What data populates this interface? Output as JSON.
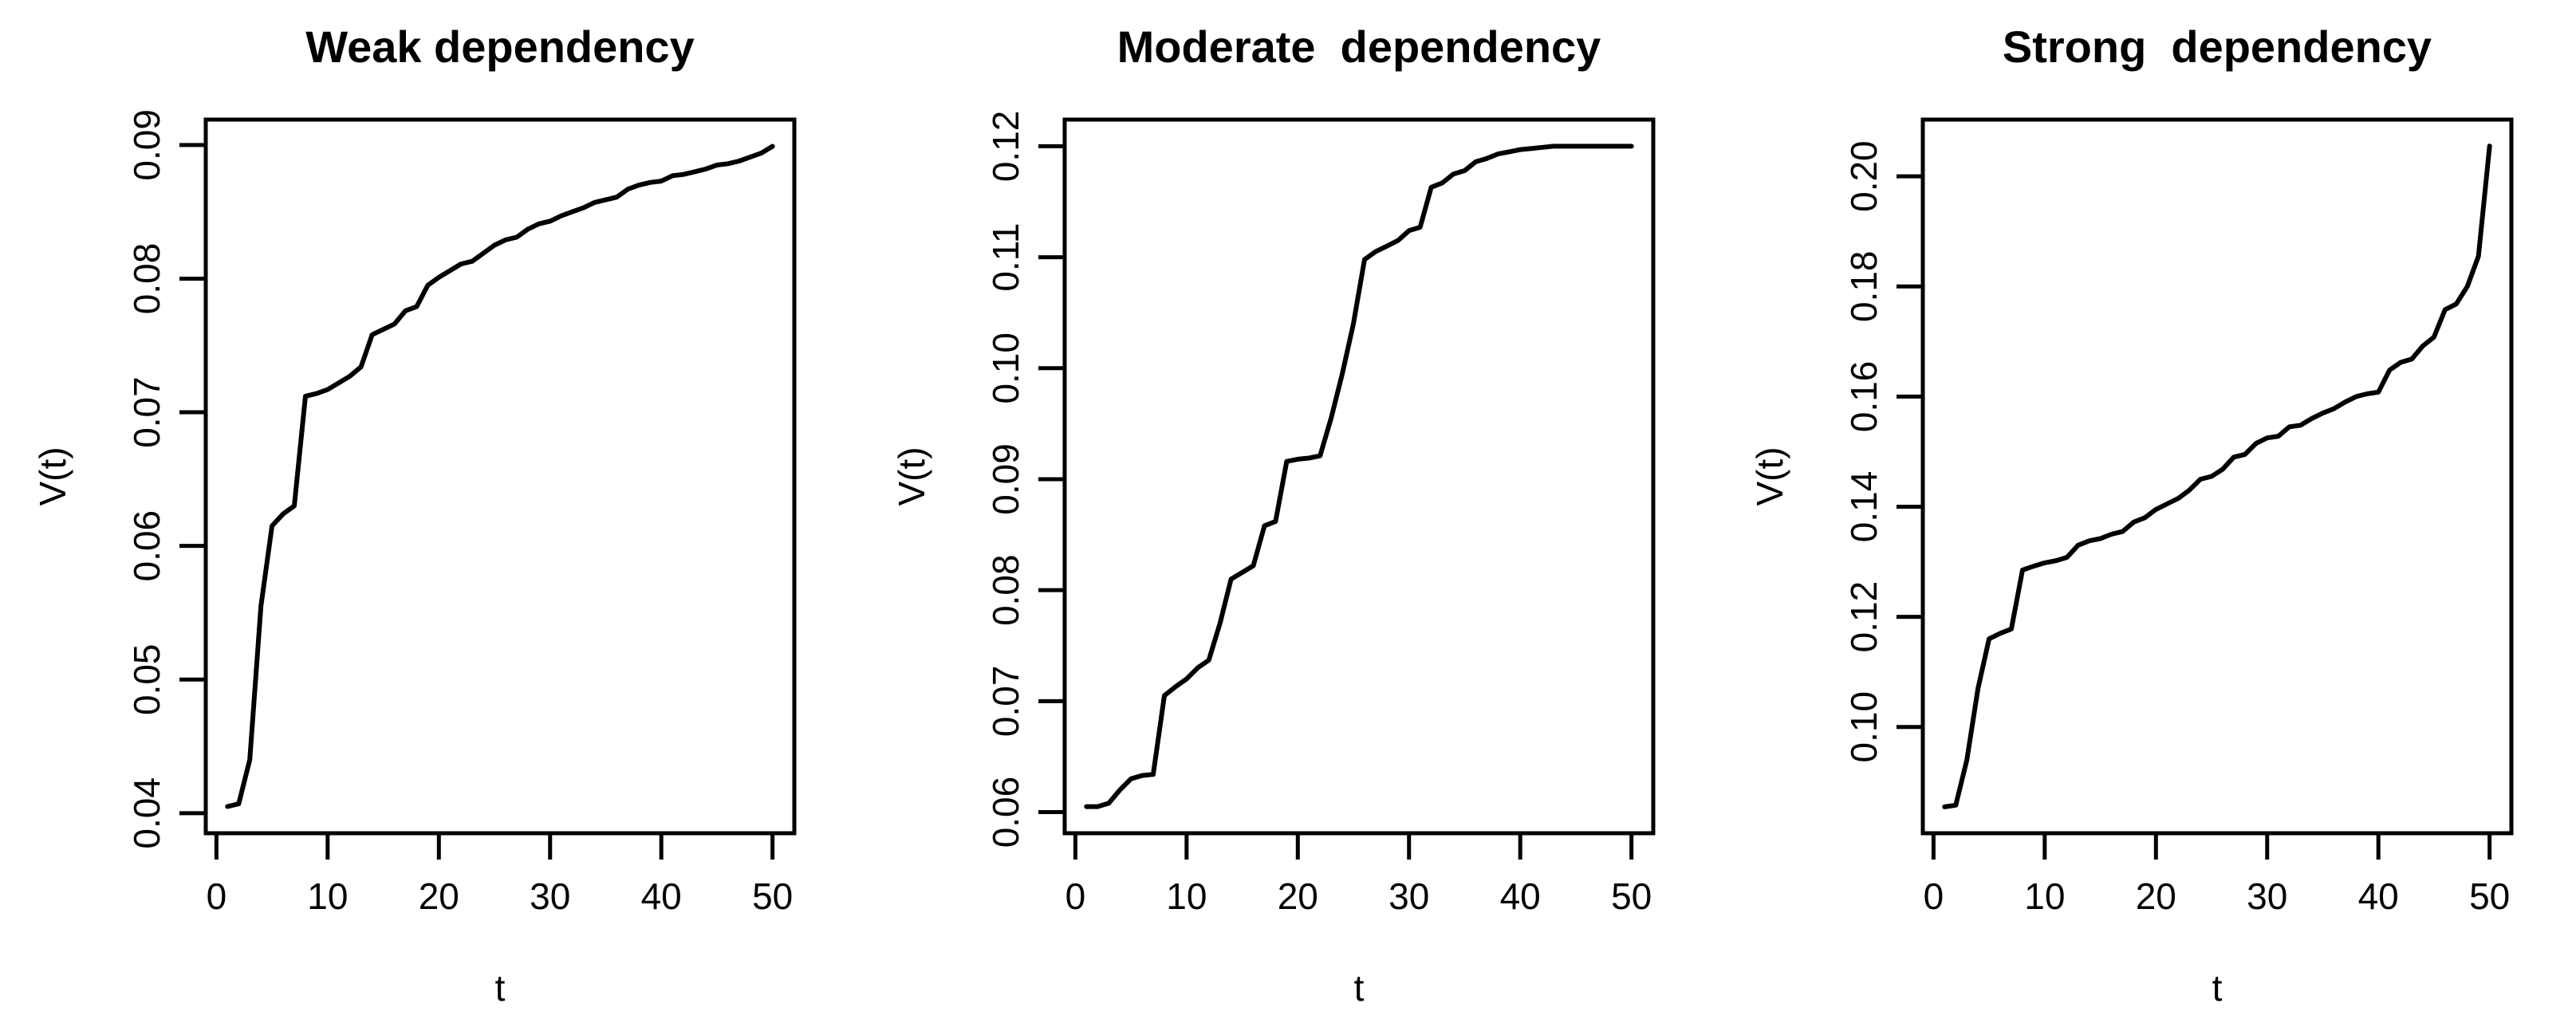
{
  "figure": {
    "background": "#ffffff",
    "line_color": "#000000"
  },
  "chart_data": [
    {
      "type": "line",
      "title": "Weak dependency",
      "xlabel": "t",
      "ylabel": "V(t)",
      "xlim": [
        -0.96,
        51.96
      ],
      "ylim": [
        0.0385,
        0.0919
      ],
      "grid": false,
      "xticks": {
        "values": [
          0,
          10,
          20,
          30,
          40,
          50
        ],
        "labels": [
          "0",
          "10",
          "20",
          "30",
          "40",
          "50"
        ]
      },
      "yticks": {
        "values": [
          0.04,
          0.05,
          0.06,
          0.07,
          0.08,
          0.09
        ],
        "labels": [
          "0.04",
          "0.05",
          "0.06",
          "0.07",
          "0.08",
          "0.09"
        ]
      },
      "x": [
        1,
        2,
        3,
        4,
        5,
        6,
        7,
        8,
        9,
        10,
        11,
        12,
        13,
        14,
        15,
        16,
        17,
        18,
        19,
        20,
        21,
        22,
        23,
        24,
        25,
        26,
        27,
        28,
        29,
        30,
        31,
        32,
        33,
        34,
        35,
        36,
        37,
        38,
        39,
        40,
        41,
        42,
        43,
        44,
        45,
        46,
        47,
        48,
        49,
        50
      ],
      "y": [
        0.0405,
        0.0407,
        0.044,
        0.0555,
        0.0615,
        0.0624,
        0.063,
        0.0712,
        0.0714,
        0.0717,
        0.0722,
        0.0727,
        0.0734,
        0.0758,
        0.0762,
        0.0766,
        0.0776,
        0.0779,
        0.0795,
        0.0801,
        0.0806,
        0.0811,
        0.0813,
        0.0819,
        0.0825,
        0.0829,
        0.0831,
        0.0837,
        0.0841,
        0.0843,
        0.0847,
        0.085,
        0.0853,
        0.0857,
        0.0859,
        0.0861,
        0.0867,
        0.087,
        0.0872,
        0.0873,
        0.0877,
        0.0878,
        0.088,
        0.0882,
        0.0885,
        0.0886,
        0.0888,
        0.0891,
        0.0894,
        0.0899
      ]
    },
    {
      "type": "line",
      "title": "Moderate  dependency",
      "xlabel": "t",
      "ylabel": "V(t)",
      "xlim": [
        -0.96,
        51.96
      ],
      "ylim": [
        0.0581,
        0.1224
      ],
      "grid": false,
      "xticks": {
        "values": [
          0,
          10,
          20,
          30,
          40,
          50
        ],
        "labels": [
          "0",
          "10",
          "20",
          "30",
          "40",
          "50"
        ]
      },
      "yticks": {
        "values": [
          0.06,
          0.07,
          0.08,
          0.09,
          0.1,
          0.11,
          0.12
        ],
        "labels": [
          "0.06",
          "0.07",
          "0.08",
          "0.09",
          "0.10",
          "0.11",
          "0.12"
        ]
      },
      "x": [
        1,
        2,
        3,
        4,
        5,
        6,
        7,
        8,
        9,
        10,
        11,
        12,
        13,
        14,
        15,
        16,
        17,
        18,
        19,
        20,
        21,
        22,
        23,
        24,
        25,
        26,
        27,
        28,
        29,
        30,
        31,
        32,
        33,
        34,
        35,
        36,
        37,
        38,
        39,
        40,
        41,
        42,
        43,
        44,
        45,
        46,
        47,
        48,
        49,
        50
      ],
      "y": [
        0.0605,
        0.0605,
        0.0608,
        0.062,
        0.063,
        0.0633,
        0.0634,
        0.0705,
        0.0713,
        0.072,
        0.073,
        0.0737,
        0.077,
        0.081,
        0.0816,
        0.0822,
        0.0858,
        0.0862,
        0.0916,
        0.0918,
        0.0919,
        0.0921,
        0.0955,
        0.0995,
        0.104,
        0.1098,
        0.1105,
        0.111,
        0.1115,
        0.1124,
        0.1127,
        0.1163,
        0.1167,
        0.1175,
        0.1178,
        0.1186,
        0.1189,
        0.1193,
        0.1195,
        0.1197,
        0.1198,
        0.1199,
        0.12,
        0.12,
        0.12,
        0.12,
        0.12,
        0.12,
        0.12,
        0.12
      ]
    },
    {
      "type": "line",
      "title": "Strong  dependency",
      "xlabel": "t",
      "ylabel": "V(t)",
      "xlim": [
        -0.96,
        51.96
      ],
      "ylim": [
        0.0807,
        0.2103
      ],
      "grid": false,
      "xticks": {
        "values": [
          0,
          10,
          20,
          30,
          40,
          50
        ],
        "labels": [
          "0",
          "10",
          "20",
          "30",
          "40",
          "50"
        ]
      },
      "yticks": {
        "values": [
          0.1,
          0.12,
          0.14,
          0.16,
          0.18,
          0.2
        ],
        "labels": [
          "0.10",
          "0.12",
          "0.14",
          "0.16",
          "0.18",
          "0.20"
        ]
      },
      "x": [
        1,
        2,
        3,
        4,
        5,
        6,
        7,
        8,
        9,
        10,
        11,
        12,
        13,
        14,
        15,
        16,
        17,
        18,
        19,
        20,
        21,
        22,
        23,
        24,
        25,
        26,
        27,
        28,
        29,
        30,
        31,
        32,
        33,
        34,
        35,
        36,
        37,
        38,
        39,
        40,
        41,
        42,
        43,
        44,
        45,
        46,
        47,
        48,
        49,
        50
      ],
      "y": [
        0.0855,
        0.0858,
        0.094,
        0.107,
        0.116,
        0.117,
        0.1178,
        0.1285,
        0.1292,
        0.1298,
        0.1302,
        0.1308,
        0.133,
        0.1338,
        0.1342,
        0.135,
        0.1355,
        0.1372,
        0.138,
        0.1395,
        0.1405,
        0.1415,
        0.143,
        0.145,
        0.1455,
        0.1468,
        0.149,
        0.1495,
        0.1515,
        0.1525,
        0.1528,
        0.1545,
        0.1548,
        0.156,
        0.157,
        0.1578,
        0.159,
        0.16,
        0.1605,
        0.1608,
        0.1648,
        0.1662,
        0.1668,
        0.1692,
        0.1708,
        0.1758,
        0.1768,
        0.18,
        0.1855,
        0.2055
      ]
    }
  ]
}
